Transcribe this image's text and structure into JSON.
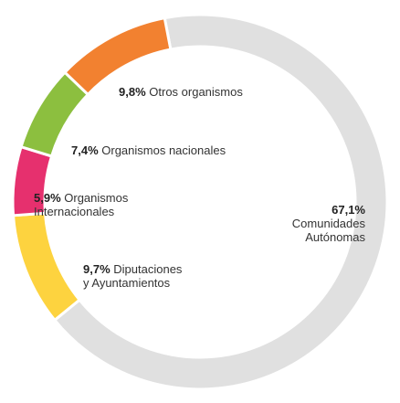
{
  "chart_data": {
    "type": "donut",
    "categories": [
      "Comunidades Autónomas",
      "Diputaciones y Ayuntamientos",
      "Organismos Internacionales",
      "Organismos nacionales",
      "Otros organismos"
    ],
    "values": [
      67.1,
      9.7,
      5.9,
      7.4,
      9.8
    ],
    "value_labels": [
      "67,1%",
      "9,7%",
      "5,9%",
      "7,4%",
      "9,8%"
    ],
    "colors": [
      "#e0e0e0",
      "#fdd33f",
      "#e6306e",
      "#8cbf3f",
      "#f28130"
    ]
  }
}
